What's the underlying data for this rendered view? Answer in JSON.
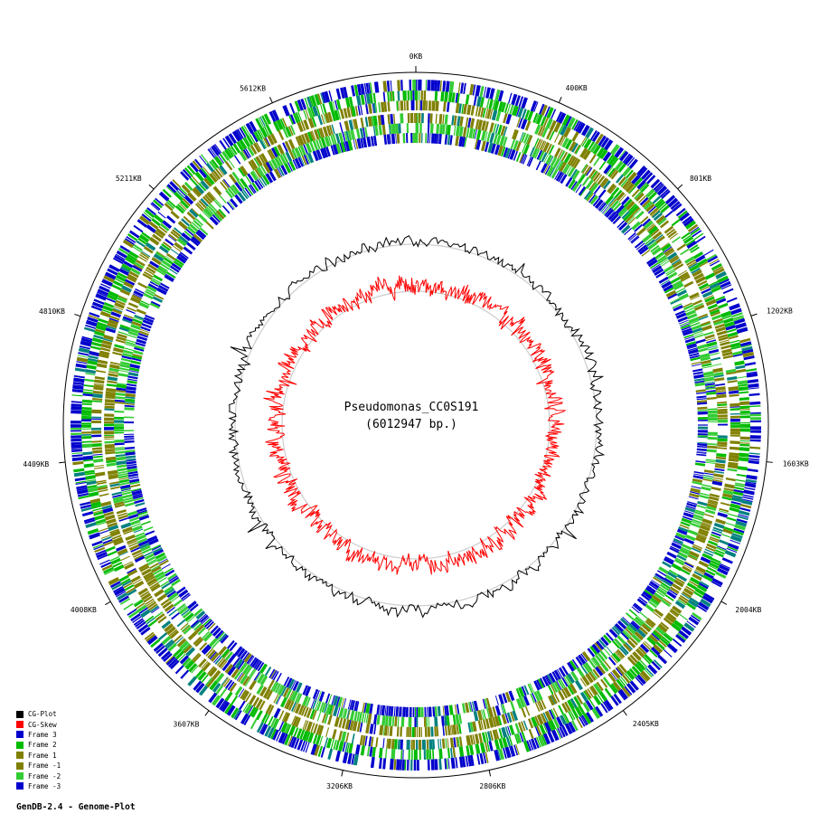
{
  "plot": {
    "genome_name": "Pseudomonas_CC0S191",
    "genome_size_label": "(6012947 bp.)",
    "genome_size_bp": 6012947,
    "ticks": [
      {
        "label": "0KB",
        "kb": 0
      },
      {
        "label": "400KB",
        "kb": 400
      },
      {
        "label": "801KB",
        "kb": 801
      },
      {
        "label": "1202KB",
        "kb": 1202
      },
      {
        "label": "1603KB",
        "kb": 1603
      },
      {
        "label": "2004KB",
        "kb": 2004
      },
      {
        "label": "2405KB",
        "kb": 2405
      },
      {
        "label": "2806KB",
        "kb": 2806
      },
      {
        "label": "3206KB",
        "kb": 3206
      },
      {
        "label": "3607KB",
        "kb": 3607
      },
      {
        "label": "4008KB",
        "kb": 4008
      },
      {
        "label": "4409KB",
        "kb": 4409
      },
      {
        "label": "4810KB",
        "kb": 4810
      },
      {
        "label": "5211KB",
        "kb": 5211
      },
      {
        "label": "5612KB",
        "kb": 5612
      }
    ],
    "colors": {
      "cg_plot": "#000000",
      "cg_skew": "#ff0000",
      "frame_3": "#0000cc",
      "frame_2": "#00bb00",
      "frame_1": "#808000",
      "frame_minus1": "#808000",
      "frame_minus2": "#33cc33",
      "frame_minus3": "#0000cc",
      "ring": "#cccccc",
      "outline": "#000000"
    }
  },
  "legend": [
    {
      "label": "CG-Plot",
      "color": "#000000"
    },
    {
      "label": "CG-Skew",
      "color": "#ff0000"
    },
    {
      "label": "Frame 3",
      "color": "#0000cc"
    },
    {
      "label": "Frame 2",
      "color": "#00bb00"
    },
    {
      "label": "Frame 1",
      "color": "#808000"
    },
    {
      "label": "Frame -1",
      "color": "#808000"
    },
    {
      "label": "Frame -2",
      "color": "#33cc33"
    },
    {
      "label": "Frame -3",
      "color": "#0000cc"
    }
  ],
  "footer": "GenDB-2.4 - Genome-Plot"
}
